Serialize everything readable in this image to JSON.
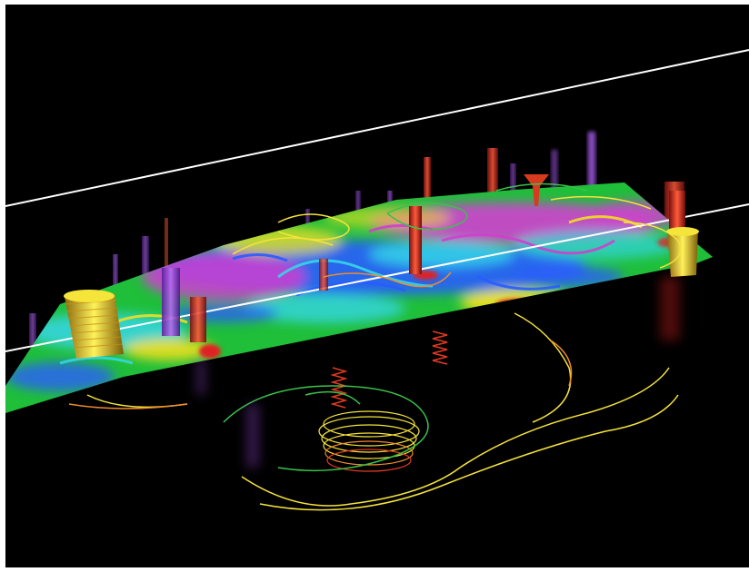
{
  "image": {
    "subject": "3d-flow-visualization",
    "background_color": "#000000",
    "frame_color": "#ffffff",
    "palette": {
      "slice_green": "#22c33a",
      "slice_yellow": "#f0e020",
      "slice_magenta": "#d040d0",
      "slice_blue": "#2a5cff",
      "slice_cyan": "#35d6e6",
      "slice_red": "#e02020",
      "vortex_red": "#e33a22",
      "vortex_purple": "#9a4ad8",
      "streamline_yellow": "#f5e43a",
      "streamline_green": "#39c24a",
      "streamline_orange": "#f08a2a",
      "reference_line": "#ffffff"
    }
  }
}
